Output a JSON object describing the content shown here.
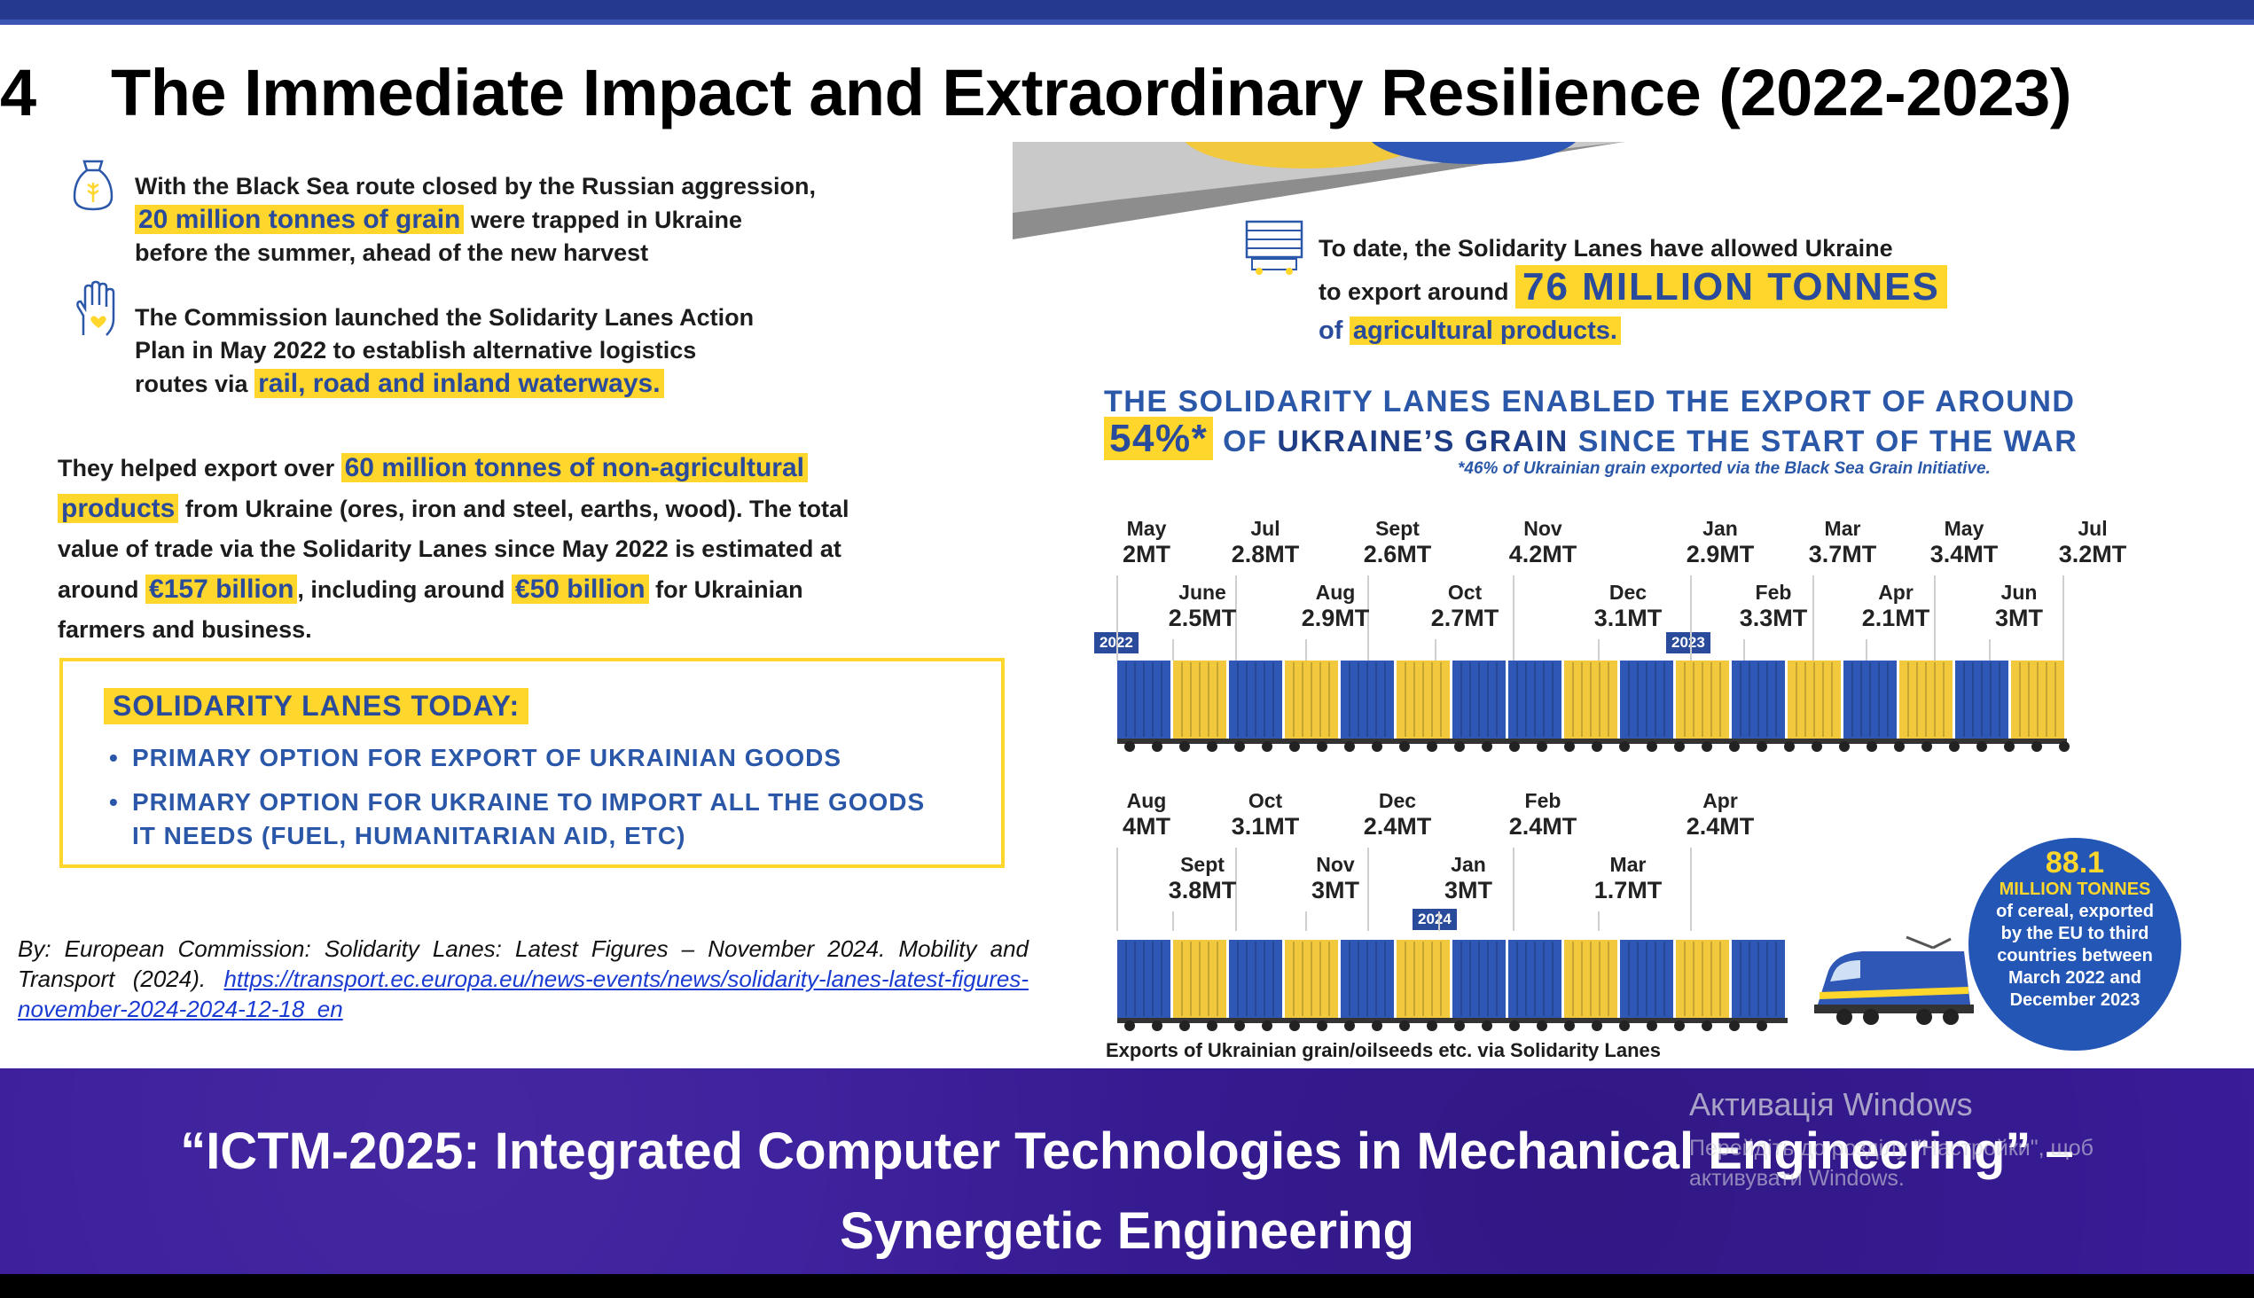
{
  "slide": {
    "number": "4",
    "title": "The Immediate Impact and Extraordinary Resilience (2022-2023)"
  },
  "left": {
    "p1_a": "With the Black Sea route closed by the Russian aggression,",
    "p1_hl": "20 million tonnes of grain",
    "p1_b": "were trapped in Ukraine",
    "p1_c": "before the summer, ahead of the new harvest",
    "p2_a": "The Commission launched the Solidarity Lanes Action",
    "p2_b": "Plan in May 2022 to establish alternative logistics",
    "p2_c": "routes via",
    "p2_hl": "rail, road and inland waterways.",
    "p3_a": "They helped export over",
    "p3_hl1a": "60 million tonnes of non-agricultural",
    "p3_hl1b": "products",
    "p3_b": "from Ukraine (ores, iron and steel, earths, wood). The total value of trade via the Solidarity Lanes since May 2022 is estimated at around",
    "p3_hl2": "€157 billion",
    "p3_c": ", including around",
    "p3_hl3": "€50 billion",
    "p3_d": "for Ukrainian farmers and business.",
    "box_title": "SOLIDARITY LANES TODAY:",
    "bullet1": "PRIMARY OPTION FOR EXPORT OF UKRAINIAN GOODS",
    "bullet2a": "PRIMARY OPTION FOR UKRAINE TO IMPORT ALL THE GOODS",
    "bullet2b": "IT NEEDS (FUEL, HUMANITARIAN AID, ETC)",
    "citation": "By: European Commission: Solidarity Lanes: Latest Figures – November 2024. Mobility and Transport (2024).",
    "citation_link": "https://transport.ec.europa.eu/news-events/news/solidarity-lanes-latest-figures-november-2024-2024-12-18_en"
  },
  "right": {
    "export_a": "To date, the Solidarity Lanes have allowed Ukraine",
    "export_b": "to export around",
    "export_big": "76 MILLION TONNES",
    "export_c": "of",
    "export_hl": "agricultural products.",
    "headline1": "THE SOLIDARITY LANES ENABLED THE EXPORT OF AROUND",
    "headline_pct": "54%*",
    "headline2a": "OF",
    "headline2b": "UKRAINE’S GRAIN",
    "headline2c": "SINCE THE START OF THE WAR",
    "footnote": "*46% of Ukrainian grain exported via the Black Sea Grain Initiative.",
    "row1_upper": [
      {
        "month": "May",
        "value": "2MT"
      },
      {
        "month": "Jul",
        "value": "2.8MT"
      },
      {
        "month": "Sept",
        "value": "2.6MT"
      },
      {
        "month": "Nov",
        "value": "4.2MT"
      },
      {
        "month": "Jan",
        "value": "2.9MT"
      },
      {
        "month": "Mar",
        "value": "3.7MT"
      },
      {
        "month": "May",
        "value": "3.4MT"
      },
      {
        "month": "Jul",
        "value": "3.2MT"
      }
    ],
    "row1_lower": [
      {
        "month": "June",
        "value": "2.5MT"
      },
      {
        "month": "Aug",
        "value": "2.9MT"
      },
      {
        "month": "Oct",
        "value": "2.7MT"
      },
      {
        "month": "Dec",
        "value": "3.1MT"
      },
      {
        "month": "Feb",
        "value": "3.3MT"
      },
      {
        "month": "Apr",
        "value": "2.1MT"
      },
      {
        "month": "Jun",
        "value": "3MT"
      }
    ],
    "row2_upper": [
      {
        "month": "Aug",
        "value": "4MT"
      },
      {
        "month": "Oct",
        "value": "3.1MT"
      },
      {
        "month": "Dec",
        "value": "2.4MT"
      },
      {
        "month": "Feb",
        "value": "2.4MT"
      },
      {
        "month": "Apr",
        "value": "2.4MT"
      }
    ],
    "row2_lower": [
      {
        "month": "Sept",
        "value": "3.8MT"
      },
      {
        "month": "Nov",
        "value": "3MT"
      },
      {
        "month": "Jan",
        "value": "3MT"
      },
      {
        "month": "Mar",
        "value": "1.7MT"
      }
    ],
    "year_2022": "2022",
    "year_2023": "2023",
    "year_2024": "2024",
    "circle_num": "88.1",
    "circle_l1": "MILLION TONNES",
    "circle_l2": "of cereal, exported",
    "circle_l3": "by the EU to third",
    "circle_l4": "countries between",
    "circle_l5": "March 2022 and",
    "circle_l6": "December 2023",
    "caption": "Exports of Ukrainian grain/oilseeds etc. via Solidarity Lanes"
  },
  "footer": {
    "line1": "“ICTM-2025: Integrated Computer Technologies in Mechanical Engineering” –",
    "line2": "Synergetic Engineering"
  },
  "watermark": {
    "title": "Активація Windows",
    "subtitle": "Перейдіть до розділу \"Настройки\", щоб активувати Windows."
  },
  "colors": {
    "yellow": "#fed62c",
    "blue": "#2a4b9b",
    "container_blue": "#2f57b5",
    "container_yellow": "#f2c93c",
    "footer_bg": "#3a1c9b"
  }
}
